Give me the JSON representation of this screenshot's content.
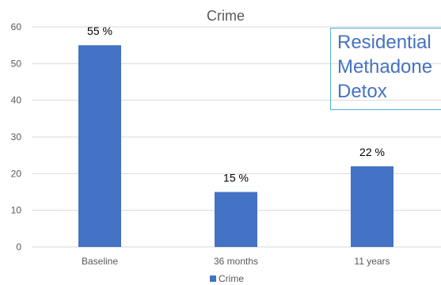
{
  "chart_data": {
    "type": "bar",
    "title": "Crime",
    "categories": [
      "Baseline",
      "36 months",
      "11 years"
    ],
    "series": [
      {
        "name": "Crime",
        "values": [
          55,
          15,
          22
        ]
      }
    ],
    "data_labels": [
      "55 %",
      "15 %",
      "22 %"
    ],
    "ylim": [
      0,
      60
    ],
    "yticks": [
      0,
      10,
      20,
      30,
      40,
      50,
      60
    ],
    "grid": true,
    "legend": "bottom",
    "xlabel": "",
    "ylabel": ""
  },
  "colors": {
    "bar": "#4472c4",
    "grid": "#d9d9d9",
    "axis_text": "#595959",
    "label_text": "#000000",
    "callout_text": "#4472c4",
    "callout_border": "#4fb3d9"
  },
  "callout": {
    "lines": [
      "Residential",
      "Methadone",
      "Detox"
    ]
  }
}
